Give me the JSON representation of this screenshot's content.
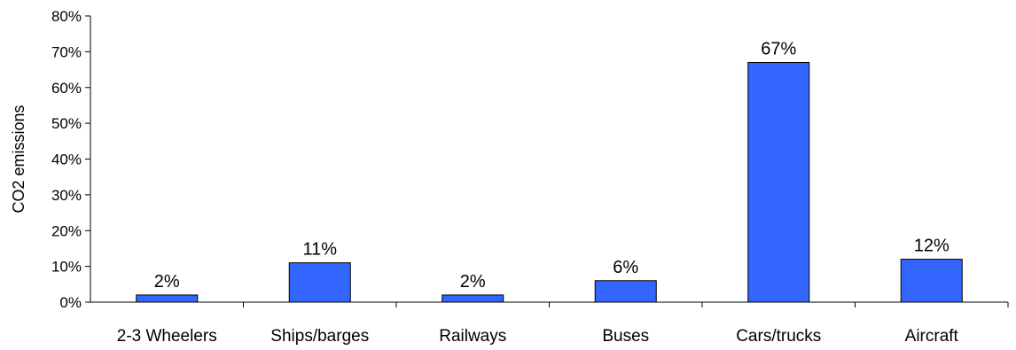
{
  "chart_data": {
    "type": "bar",
    "categories": [
      "2-3 Wheelers",
      "Ships/barges",
      "Railways",
      "Buses",
      "Cars/trucks",
      "Aircraft"
    ],
    "values": [
      2,
      11,
      2,
      6,
      67,
      12
    ],
    "value_labels": [
      "2%",
      "11%",
      "2%",
      "6%",
      "67%",
      "12%"
    ],
    "ylabel": "CO2 emissions",
    "xlabel": "",
    "title": "",
    "ylim": [
      0,
      80
    ],
    "y_ticks": [
      0,
      10,
      20,
      30,
      40,
      50,
      60,
      70,
      80
    ],
    "y_tick_labels": [
      "0%",
      "10%",
      "20%",
      "30%",
      "40%",
      "50%",
      "60%",
      "70%",
      "80%"
    ],
    "grid": false,
    "legend": "none",
    "bar_color": "#3366ff",
    "bar_outline": "#000000"
  }
}
